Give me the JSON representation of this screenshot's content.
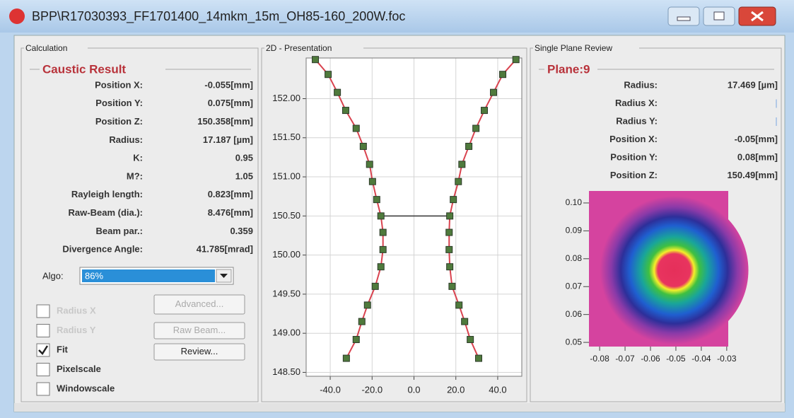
{
  "window": {
    "title": "BPP\\R17030393_FF1701400_14mkm_15m_OH85-160_200W.foc"
  },
  "calculation": {
    "group_title": "Calculation",
    "result_title": "Caustic Result",
    "rows": [
      {
        "label": "Position X:",
        "value": "-0.055[mm]"
      },
      {
        "label": "Position Y:",
        "value": "0.075[mm]"
      },
      {
        "label": "Position Z:",
        "value": "150.358[mm]"
      },
      {
        "label": "Radius:",
        "value": "17.187 [µm]"
      },
      {
        "label": "K:",
        "value": "0.95"
      },
      {
        "label": "M?:",
        "value": "1.05"
      },
      {
        "label": "Rayleigh length:",
        "value": "0.823[mm]"
      },
      {
        "label": "Raw-Beam (dia.):",
        "value": "8.476[mm]"
      },
      {
        "label": "Beam par.:",
        "value": "0.359"
      },
      {
        "label": "Divergence Angle:",
        "value": "41.785[mrad]"
      }
    ],
    "algo_label": "Algo:",
    "algo_value": "86%",
    "checkboxes": [
      {
        "label": "Radius X",
        "checked": false,
        "enabled": false
      },
      {
        "label": "Radius Y",
        "checked": false,
        "enabled": false
      },
      {
        "label": "Fit",
        "checked": true,
        "enabled": true
      },
      {
        "label": "Pixelscale",
        "checked": false,
        "enabled": true
      },
      {
        "label": "Windowscale",
        "checked": false,
        "enabled": true
      }
    ],
    "buttons": [
      {
        "label": "Advanced...",
        "enabled": false
      },
      {
        "label": "Raw Beam...",
        "enabled": false
      },
      {
        "label": "Review...",
        "enabled": true
      }
    ]
  },
  "presentation_title": "2D - Presentation",
  "single_plane": {
    "group_title": "Single Plane Review",
    "plane_title": "Plane:9",
    "rows": [
      {
        "label": "Radius:",
        "value": "17.469 [µm]"
      },
      {
        "label": "Radius X:"
      },
      {
        "label": "Radius Y:"
      },
      {
        "label": "Position X:",
        "value": "-0.05[mm]"
      },
      {
        "label": "Position Y:",
        "value": "0.08[mm]"
      },
      {
        "label": "Position Z:",
        "value": "150.49[mm]"
      }
    ]
  },
  "chart_data": [
    {
      "type": "scatter",
      "xlim": [
        -51.5,
        51.5
      ],
      "ylim": [
        148.45,
        152.52
      ],
      "xticks": [
        {
          "value": -40,
          "label": "-40.0"
        },
        {
          "value": -20,
          "label": "-20.0"
        },
        {
          "value": 0,
          "label": "0.0"
        },
        {
          "value": 20,
          "label": "20.0"
        },
        {
          "value": 40,
          "label": "40.0"
        }
      ],
      "yticks": [
        {
          "value": 148.5,
          "label": "148.50"
        },
        {
          "value": 149,
          "label": "149.00"
        },
        {
          "value": 149.5,
          "label": "149.50"
        },
        {
          "value": 150,
          "label": "150.00"
        },
        {
          "value": 150.5,
          "label": "150.50"
        },
        {
          "value": 151,
          "label": "151.00"
        },
        {
          "value": 151.5,
          "label": "151.50"
        },
        {
          "value": 152,
          "label": "152.00"
        }
      ],
      "grid": true,
      "fit_color": "#d9434f",
      "waist_line": true,
      "series": [
        {
          "color": "#4f7a3c",
          "x": [
            -47.1,
            -41.0,
            -36.6,
            -32.6,
            -27.6,
            -24.2,
            -21.2,
            -19.8,
            -17.8,
            -15.8,
            -14.8,
            -14.8,
            -15.8,
            -18.5,
            -22.2,
            -24.9,
            -27.6,
            -32.3
          ],
          "values": [
            152.5,
            152.31,
            152.08,
            151.85,
            151.62,
            151.39,
            151.16,
            150.94,
            150.71,
            150.5,
            150.29,
            150.07,
            149.85,
            149.6,
            149.36,
            149.15,
            148.92,
            148.68
          ]
        },
        {
          "color": "#4f7a3c",
          "x": [
            48.7,
            42.4,
            38.0,
            33.6,
            29.6,
            26.2,
            22.9,
            21.2,
            18.8,
            17.1,
            16.8,
            16.8,
            17.1,
            18.2,
            21.5,
            24.2,
            26.9,
            30.9
          ],
          "values": [
            152.5,
            152.31,
            152.08,
            151.85,
            151.62,
            151.39,
            151.16,
            150.94,
            150.71,
            150.5,
            150.29,
            150.07,
            149.85,
            149.6,
            149.36,
            149.15,
            148.92,
            148.68
          ]
        }
      ]
    },
    {
      "type": "image",
      "xlim": [
        -0.0842,
        -0.0294
      ],
      "ylim": [
        0.0485,
        0.1043
      ],
      "xticks": [
        -0.08,
        -0.07,
        -0.06,
        -0.05,
        -0.04,
        -0.03
      ],
      "yticks": [
        0.05,
        0.06,
        0.07,
        0.08,
        0.09,
        {
          "value": 0.1,
          "label": "0.10"
        }
      ]
    }
  ]
}
